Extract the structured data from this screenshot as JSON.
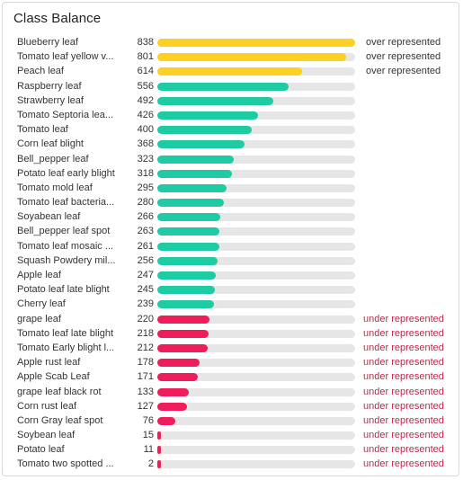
{
  "panel": {
    "title": "Class Balance"
  },
  "colors": {
    "over": "#fdd023",
    "normal": "#1fcba3",
    "under": "#ef1e5a",
    "over_text": "#333333",
    "under_text": "#c2264c"
  },
  "status_labels": {
    "over": "over represented",
    "under": "under represented"
  },
  "max_count": 838,
  "rows": [
    {
      "label": "Blueberry leaf",
      "count": 838,
      "status": "over"
    },
    {
      "label": "Tomato leaf yellow v...",
      "count": 801,
      "status": "over"
    },
    {
      "label": "Peach leaf",
      "count": 614,
      "status": "over"
    },
    {
      "label": "Raspberry leaf",
      "count": 556,
      "status": "normal"
    },
    {
      "label": "Strawberry leaf",
      "count": 492,
      "status": "normal"
    },
    {
      "label": "Tomato Septoria lea...",
      "count": 426,
      "status": "normal"
    },
    {
      "label": "Tomato leaf",
      "count": 400,
      "status": "normal"
    },
    {
      "label": "Corn leaf blight",
      "count": 368,
      "status": "normal"
    },
    {
      "label": "Bell_pepper leaf",
      "count": 323,
      "status": "normal"
    },
    {
      "label": "Potato leaf early blight",
      "count": 318,
      "status": "normal"
    },
    {
      "label": "Tomato mold leaf",
      "count": 295,
      "status": "normal"
    },
    {
      "label": "Tomato leaf bacteria...",
      "count": 280,
      "status": "normal"
    },
    {
      "label": "Soyabean leaf",
      "count": 266,
      "status": "normal"
    },
    {
      "label": "Bell_pepper leaf spot",
      "count": 263,
      "status": "normal"
    },
    {
      "label": "Tomato leaf mosaic ...",
      "count": 261,
      "status": "normal"
    },
    {
      "label": "Squash Powdery mil...",
      "count": 256,
      "status": "normal"
    },
    {
      "label": "Apple leaf",
      "count": 247,
      "status": "normal"
    },
    {
      "label": "Potato leaf late blight",
      "count": 245,
      "status": "normal"
    },
    {
      "label": "Cherry leaf",
      "count": 239,
      "status": "normal"
    },
    {
      "label": "grape leaf",
      "count": 220,
      "status": "under"
    },
    {
      "label": "Tomato leaf late blight",
      "count": 218,
      "status": "under"
    },
    {
      "label": "Tomato Early blight l...",
      "count": 212,
      "status": "under"
    },
    {
      "label": "Apple rust leaf",
      "count": 178,
      "status": "under"
    },
    {
      "label": "Apple Scab Leaf",
      "count": 171,
      "status": "under"
    },
    {
      "label": "grape leaf black rot",
      "count": 133,
      "status": "under"
    },
    {
      "label": "Corn rust leaf",
      "count": 127,
      "status": "under"
    },
    {
      "label": "Corn Gray leaf spot",
      "count": 76,
      "status": "under"
    },
    {
      "label": "Soybean leaf",
      "count": 15,
      "status": "under"
    },
    {
      "label": "Potato leaf",
      "count": 11,
      "status": "under"
    },
    {
      "label": "Tomato two spotted ...",
      "count": 2,
      "status": "under"
    }
  ]
}
